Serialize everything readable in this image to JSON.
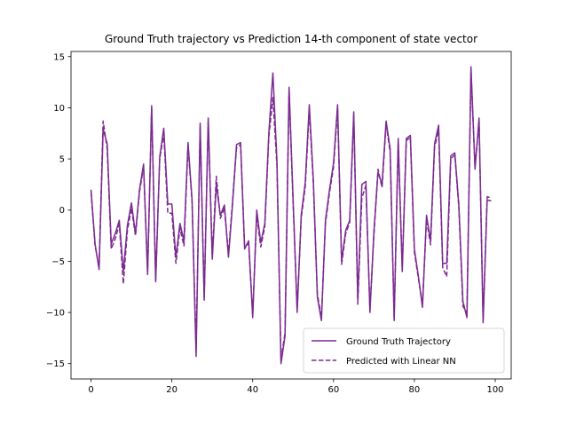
{
  "chart_data": {
    "type": "line",
    "title": "Ground Truth trajectory vs Prediction 14-th component of state vector",
    "xlabel": "",
    "ylabel": "",
    "xlim": [
      -4.95,
      103.95
    ],
    "ylim": [
      -16.5,
      15.5
    ],
    "xticks": [
      0,
      20,
      40,
      60,
      80,
      100
    ],
    "yticks": [
      -15,
      -10,
      -5,
      0,
      5,
      10,
      15
    ],
    "grid": false,
    "legend_position": "lower-right",
    "x": [
      0,
      1,
      2,
      3,
      4,
      5,
      6,
      7,
      8,
      9,
      10,
      11,
      12,
      13,
      14,
      15,
      16,
      17,
      18,
      19,
      20,
      21,
      22,
      23,
      24,
      25,
      26,
      27,
      28,
      29,
      30,
      31,
      32,
      33,
      34,
      35,
      36,
      37,
      38,
      39,
      40,
      41,
      42,
      43,
      44,
      45,
      46,
      47,
      48,
      49,
      50,
      51,
      52,
      53,
      54,
      55,
      56,
      57,
      58,
      59,
      60,
      61,
      62,
      63,
      64,
      65,
      66,
      67,
      68,
      69,
      70,
      71,
      72,
      73,
      74,
      75,
      76,
      77,
      78,
      79,
      80,
      81,
      82,
      83,
      84,
      85,
      86,
      87,
      88,
      89,
      90,
      91,
      92,
      93,
      94,
      95,
      96,
      97,
      98,
      99
    ],
    "series": [
      {
        "name": "Ground Truth Trajectory",
        "color": "#7b2a90",
        "style": "solid",
        "values": [
          2.0,
          -3.3,
          -5.8,
          7.9,
          6.5,
          -3.3,
          -2.3,
          -1.0,
          -6.0,
          -1.5,
          0.7,
          -2.3,
          2.0,
          4.5,
          -6.3,
          10.2,
          -7.0,
          5.2,
          8.0,
          0.6,
          0.6,
          -4.6,
          -1.3,
          -3.0,
          6.6,
          1.0,
          -14.3,
          8.5,
          -8.8,
          9.0,
          -4.8,
          2.5,
          -0.5,
          0.5,
          -4.6,
          0.5,
          6.4,
          6.6,
          -3.8,
          -3.0,
          -10.5,
          0.0,
          -3.2,
          -1.3,
          7.6,
          13.4,
          4.8,
          -15.0,
          -12.3,
          12.0,
          1.0,
          -10.0,
          -0.5,
          2.7,
          10.3,
          3.0,
          -8.5,
          -10.8,
          -1.0,
          2.0,
          4.6,
          10.3,
          -5.0,
          -2.0,
          -1.0,
          9.6,
          -8.7,
          2.5,
          2.8,
          -10.0,
          -2.0,
          3.7,
          2.5,
          8.7,
          6.0,
          -10.8,
          7.0,
          -6.0,
          7.0,
          7.3,
          -3.8,
          -6.5,
          -9.5,
          -0.5,
          -3.0,
          6.5,
          8.3,
          -5.2,
          -5.2,
          5.3,
          5.6,
          0.5,
          -8.9,
          -10.5,
          14.0,
          4.0,
          9.0,
          -11.0,
          1.0,
          0.9
        ]
      },
      {
        "name": "Predicted with Linear NN",
        "color": "#7b2a90",
        "style": "dashed",
        "values": [
          1.8,
          -3.5,
          -5.5,
          8.7,
          6.0,
          -3.8,
          -2.8,
          -1.4,
          -7.2,
          -2.0,
          0.2,
          -2.5,
          1.8,
          4.2,
          -6.0,
          10.0,
          -6.8,
          5.0,
          7.5,
          -0.3,
          -0.3,
          -5.2,
          -1.8,
          -3.5,
          6.3,
          0.8,
          -13.5,
          8.2,
          -8.5,
          8.7,
          -4.5,
          3.3,
          -0.8,
          0.2,
          -4.3,
          0.8,
          6.1,
          6.4,
          -3.5,
          -3.3,
          -10.2,
          -0.5,
          -3.6,
          -1.6,
          7.2,
          11.0,
          4.3,
          -14.6,
          -12.0,
          11.7,
          0.6,
          -9.7,
          -0.8,
          2.3,
          9.8,
          2.6,
          -8.2,
          -10.5,
          -1.3,
          1.7,
          4.2,
          9.9,
          -5.3,
          -2.3,
          -1.2,
          9.3,
          -9.2,
          1.2,
          2.4,
          -9.7,
          -2.4,
          4.0,
          2.2,
          8.4,
          5.7,
          -10.5,
          6.7,
          -5.7,
          6.8,
          7.1,
          -4.1,
          -6.7,
          -9.2,
          -0.9,
          -3.4,
          6.2,
          7.8,
          -5.6,
          -6.5,
          5.0,
          5.4,
          0.2,
          -9.4,
          -10.0,
          13.5,
          4.3,
          8.6,
          -10.8,
          1.3,
          1.2
        ]
      }
    ]
  }
}
